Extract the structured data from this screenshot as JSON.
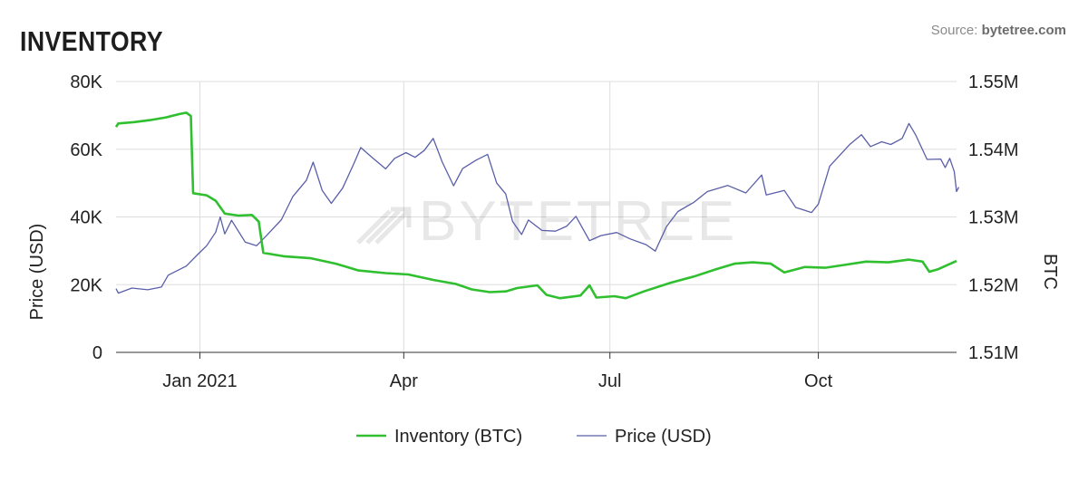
{
  "header": {
    "title": "INVENTORY",
    "source_prefix": "Source: ",
    "source_name": "bytetree.com"
  },
  "watermark": "BYTETREE",
  "colors": {
    "inventory": "#2fbf2f",
    "price": "#5a5fa8",
    "grid": "#dddddd",
    "axis": "#333333",
    "text": "#222222"
  },
  "chart_data": {
    "type": "line",
    "xaxis": {
      "ticks": [
        {
          "label": "Jan 2021",
          "date": "2021-01-01"
        },
        {
          "label": "Apr",
          "date": "2021-04-01"
        },
        {
          "label": "Jul",
          "date": "2021-07-01"
        },
        {
          "label": "Oct",
          "date": "2021-10-01"
        }
      ],
      "range": [
        "2020-11-25",
        "2021-12-01"
      ]
    },
    "y_left": {
      "label": "Price (USD)",
      "min": 0,
      "max": 80000,
      "ticks": [
        "0",
        "20K",
        "40K",
        "60K",
        "80K"
      ]
    },
    "y_right": {
      "label": "BTC",
      "min": 1510000,
      "max": 1550000,
      "ticks": [
        "1.51M",
        "1.52M",
        "1.53M",
        "1.54M",
        "1.55M"
      ]
    },
    "legend": {
      "position": "bottom",
      "items": [
        "Inventory (BTC)",
        "Price (USD)"
      ]
    },
    "grid": true,
    "series": [
      {
        "name": "Inventory (BTC)",
        "axis": "right",
        "points": [
          [
            "2020-11-25",
            1543300
          ],
          [
            "2020-11-26",
            1543800
          ],
          [
            "2020-12-03",
            1544000
          ],
          [
            "2020-12-10",
            1544300
          ],
          [
            "2020-12-17",
            1544700
          ],
          [
            "2020-12-23",
            1545200
          ],
          [
            "2020-12-26",
            1545400
          ],
          [
            "2020-12-28",
            1544900
          ],
          [
            "2020-12-29",
            1533500
          ],
          [
            "2021-01-04",
            1533200
          ],
          [
            "2021-01-08",
            1532400
          ],
          [
            "2021-01-12",
            1530500
          ],
          [
            "2021-01-18",
            1530200
          ],
          [
            "2021-01-24",
            1530300
          ],
          [
            "2021-01-27",
            1529300
          ],
          [
            "2021-01-29",
            1524700
          ],
          [
            "2021-02-07",
            1524200
          ],
          [
            "2021-02-19",
            1523900
          ],
          [
            "2021-03-02",
            1523100
          ],
          [
            "2021-03-12",
            1522100
          ],
          [
            "2021-03-24",
            1521700
          ],
          [
            "2021-04-03",
            1521500
          ],
          [
            "2021-04-14",
            1520700
          ],
          [
            "2021-04-24",
            1520100
          ],
          [
            "2021-05-01",
            1519300
          ],
          [
            "2021-05-09",
            1518900
          ],
          [
            "2021-05-16",
            1519000
          ],
          [
            "2021-05-21",
            1519500
          ],
          [
            "2021-05-30",
            1519900
          ],
          [
            "2021-06-03",
            1518500
          ],
          [
            "2021-06-09",
            1518000
          ],
          [
            "2021-06-18",
            1518400
          ],
          [
            "2021-06-22",
            1519900
          ],
          [
            "2021-06-25",
            1518100
          ],
          [
            "2021-07-03",
            1518300
          ],
          [
            "2021-07-08",
            1518000
          ],
          [
            "2021-07-16",
            1519000
          ],
          [
            "2021-07-28",
            1520300
          ],
          [
            "2021-08-07",
            1521200
          ],
          [
            "2021-08-17",
            1522300
          ],
          [
            "2021-08-25",
            1523100
          ],
          [
            "2021-09-02",
            1523300
          ],
          [
            "2021-09-10",
            1523100
          ],
          [
            "2021-09-16",
            1521800
          ],
          [
            "2021-09-25",
            1522600
          ],
          [
            "2021-10-04",
            1522500
          ],
          [
            "2021-10-12",
            1522900
          ],
          [
            "2021-10-22",
            1523400
          ],
          [
            "2021-11-01",
            1523300
          ],
          [
            "2021-11-10",
            1523700
          ],
          [
            "2021-11-16",
            1523400
          ],
          [
            "2021-11-19",
            1521900
          ],
          [
            "2021-11-23",
            1522300
          ],
          [
            "2021-11-27",
            1522900
          ],
          [
            "2021-12-01",
            1523500
          ]
        ]
      },
      {
        "name": "Price (USD)",
        "axis": "left",
        "points": [
          [
            "2020-11-25",
            18800
          ],
          [
            "2020-11-26",
            17500
          ],
          [
            "2020-12-02",
            19000
          ],
          [
            "2020-12-09",
            18500
          ],
          [
            "2020-12-15",
            19300
          ],
          [
            "2020-12-18",
            22800
          ],
          [
            "2020-12-26",
            25500
          ],
          [
            "2020-12-31",
            28900
          ],
          [
            "2021-01-04",
            31500
          ],
          [
            "2021-01-08",
            35500
          ],
          [
            "2021-01-10",
            40000
          ],
          [
            "2021-01-12",
            35000
          ],
          [
            "2021-01-15",
            39000
          ],
          [
            "2021-01-21",
            32600
          ],
          [
            "2021-01-26",
            31500
          ],
          [
            "2021-01-30",
            34200
          ],
          [
            "2021-02-06",
            39200
          ],
          [
            "2021-02-11",
            46000
          ],
          [
            "2021-02-17",
            50800
          ],
          [
            "2021-02-20",
            56200
          ],
          [
            "2021-02-24",
            47800
          ],
          [
            "2021-02-28",
            44000
          ],
          [
            "2021-03-05",
            48500
          ],
          [
            "2021-03-10",
            55800
          ],
          [
            "2021-03-13",
            60500
          ],
          [
            "2021-03-18",
            57600
          ],
          [
            "2021-03-24",
            54200
          ],
          [
            "2021-03-28",
            57300
          ],
          [
            "2021-04-02",
            59000
          ],
          [
            "2021-04-06",
            57600
          ],
          [
            "2021-04-10",
            59600
          ],
          [
            "2021-04-14",
            63200
          ],
          [
            "2021-04-18",
            56200
          ],
          [
            "2021-04-23",
            49200
          ],
          [
            "2021-04-27",
            54300
          ],
          [
            "2021-05-03",
            56800
          ],
          [
            "2021-05-08",
            58500
          ],
          [
            "2021-05-12",
            50000
          ],
          [
            "2021-05-16",
            46800
          ],
          [
            "2021-05-19",
            38700
          ],
          [
            "2021-05-23",
            34800
          ],
          [
            "2021-05-26",
            39100
          ],
          [
            "2021-06-01",
            36000
          ],
          [
            "2021-06-07",
            35800
          ],
          [
            "2021-06-12",
            37300
          ],
          [
            "2021-06-16",
            40200
          ],
          [
            "2021-06-22",
            33000
          ],
          [
            "2021-06-27",
            34500
          ],
          [
            "2021-07-04",
            35400
          ],
          [
            "2021-07-10",
            33500
          ],
          [
            "2021-07-17",
            31800
          ],
          [
            "2021-07-21",
            29900
          ],
          [
            "2021-07-26",
            37200
          ],
          [
            "2021-07-31",
            41600
          ],
          [
            "2021-08-07",
            44300
          ],
          [
            "2021-08-13",
            47500
          ],
          [
            "2021-08-22",
            49300
          ],
          [
            "2021-08-30",
            47100
          ],
          [
            "2021-09-06",
            52400
          ],
          [
            "2021-09-08",
            46500
          ],
          [
            "2021-09-16",
            47800
          ],
          [
            "2021-09-21",
            42800
          ],
          [
            "2021-09-28",
            41300
          ],
          [
            "2021-10-01",
            43800
          ],
          [
            "2021-10-06",
            55000
          ],
          [
            "2021-10-15",
            61500
          ],
          [
            "2021-10-20",
            64300
          ],
          [
            "2021-10-24",
            60800
          ],
          [
            "2021-10-29",
            62200
          ],
          [
            "2021-11-02",
            61400
          ],
          [
            "2021-11-07",
            63200
          ],
          [
            "2021-11-10",
            67600
          ],
          [
            "2021-11-13",
            64200
          ],
          [
            "2021-11-18",
            57000
          ],
          [
            "2021-11-24",
            57100
          ],
          [
            "2021-11-26",
            54600
          ],
          [
            "2021-11-28",
            57300
          ],
          [
            "2021-11-30",
            53400
          ],
          [
            "2021-12-01",
            47500
          ],
          [
            "2021-12-02",
            48800
          ]
        ]
      }
    ]
  }
}
